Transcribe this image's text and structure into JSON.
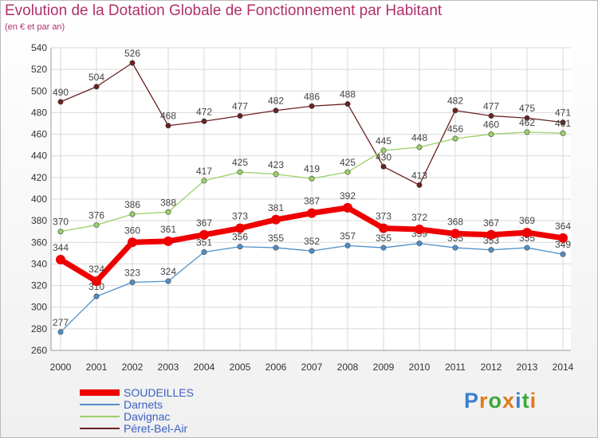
{
  "header": {
    "title": "Evolution de la Dotation Globale de Fonctionnement par Habitant",
    "subtitle": "(en € et par an)"
  },
  "chart_data": {
    "type": "line",
    "x": [
      "2000",
      "2001",
      "2002",
      "2003",
      "2004",
      "2005",
      "2006",
      "2007",
      "2008",
      "2009",
      "2010",
      "2011",
      "2012",
      "2013",
      "2014"
    ],
    "ylim": [
      260,
      540
    ],
    "yticks": [
      260,
      280,
      300,
      320,
      340,
      360,
      380,
      400,
      420,
      440,
      460,
      480,
      500,
      520,
      540
    ],
    "grid": true,
    "legend_position": "bottom-left",
    "series": [
      {
        "name": "Péret-Bel-Air",
        "color": "#6b2020",
        "values": [
          490,
          504,
          526,
          468,
          472,
          477,
          482,
          486,
          488,
          430,
          413,
          482,
          477,
          475,
          471
        ]
      },
      {
        "name": "Davignac",
        "color": "#99d166",
        "values": [
          370,
          376,
          386,
          388,
          417,
          425,
          423,
          419,
          425,
          445,
          448,
          456,
          460,
          462,
          461
        ]
      },
      {
        "name": "Darnets",
        "color": "#4f8fc8",
        "values": [
          277,
          310,
          323,
          324,
          351,
          356,
          355,
          352,
          357,
          355,
          359,
          355,
          353,
          355,
          349
        ]
      },
      {
        "name": "SOUDEILLES",
        "color": "#ee0000",
        "values": [
          344,
          324,
          360,
          361,
          367,
          373,
          381,
          387,
          392,
          373,
          372,
          368,
          367,
          369,
          364
        ]
      }
    ],
    "legend": [
      {
        "name": "SOUDEILLES",
        "color": "#ee0000"
      },
      {
        "name": "Darnets",
        "color": "#4f8fc8"
      },
      {
        "name": "Davignac",
        "color": "#99d166"
      },
      {
        "name": "Péret-Bel-Air",
        "color": "#6b2020"
      }
    ]
  },
  "brand": {
    "letters": [
      {
        "ch": "P",
        "color": "#3a7fd0"
      },
      {
        "ch": "r",
        "color": "#e07a1c"
      },
      {
        "ch": "o",
        "color": "#3ea83a"
      },
      {
        "ch": "x",
        "color": "#e07a1c"
      },
      {
        "ch": "i",
        "color": "#3a7fd0"
      },
      {
        "ch": "t",
        "color": "#3ea83a"
      },
      {
        "ch": "i",
        "color": "#e07a1c"
      }
    ]
  }
}
